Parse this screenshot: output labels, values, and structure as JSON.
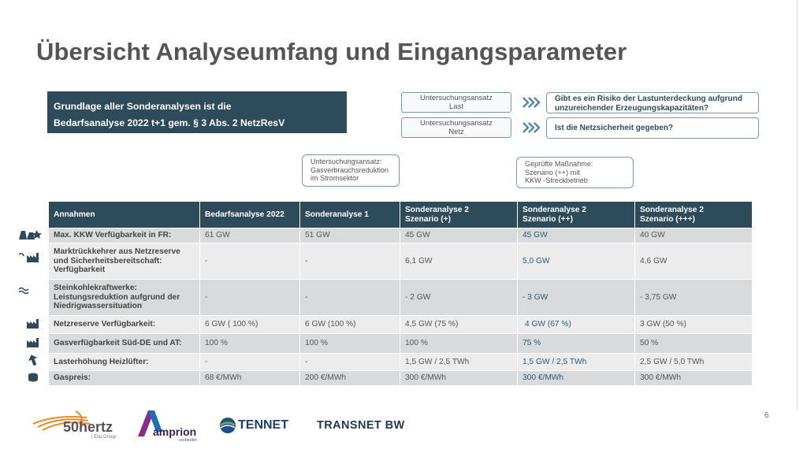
{
  "slide": {
    "title": "Übersicht Analyseumfang und Eingangsparameter",
    "page_number": "6"
  },
  "basis": {
    "line1": "Grundlage aller Sonderanalysen ist die",
    "line2": "Bedarfsanalyse 2022 t+1 gem. § 3 Abs. 2 NetzResV"
  },
  "approaches": [
    {
      "label_line1": "Untersuchungsansatz",
      "label_line2": "Last",
      "question_line1": "Gibt es ein Risiko der Lastunterdeckung aufgrund",
      "question_line2": "unzureichender Erzeugungskapazitäten?"
    },
    {
      "label_line1": "Untersuchungsansatz",
      "label_line2": "Netz",
      "question_line1": "Ist die Netzsicherheit gegeben?",
      "question_line2": ""
    }
  ],
  "notes": {
    "note1": [
      "Untersuchungsansatz:",
      "Gasverbrauchsreduktion",
      "im Stromsektor"
    ],
    "note2": [
      "Geprüfte Maßnahme:",
      "Szenario (++) mit",
      "KKW -Streckbetrieb"
    ]
  },
  "table": {
    "headers": [
      [
        "Annahmen",
        ""
      ],
      [
        "Bedarfsanalyse 2022",
        ""
      ],
      [
        "Sonderanalyse 1",
        ""
      ],
      [
        "Sonderanalyse 2",
        "Szenario (+)"
      ],
      [
        "Sonderanalyse 2",
        "Szenario (++)"
      ],
      [
        "Sonderanalyse 2",
        "Szenario (+++)"
      ]
    ],
    "rows": [
      {
        "label": [
          "Max. KKW Verfügbarkeit in FR:"
        ],
        "icon": "nuclear-plant-icon",
        "values": [
          "61 GW",
          "51 GW",
          "45 GW",
          "45 GW",
          "40 GW"
        ]
      },
      {
        "label": [
          "Marktrückkehrer aus Netzreserve",
          "und Sicherheitsbereitschaft:",
          "Verfügbarkeit"
        ],
        "icon": "factory-return-icon",
        "values": [
          "-",
          "-",
          "6,1 GW",
          "5,0 GW",
          "4,6 GW"
        ]
      },
      {
        "label": [
          "Steinkohlekraftwerke:",
          "Leistungsreduktion aufgrund der",
          "Niedrigwassersituation"
        ],
        "icon": "water-waves-icon",
        "values": [
          "-",
          "-",
          "- 2 GW",
          "- 3 GW",
          "- 3,75 GW"
        ]
      },
      {
        "label": [
          "Netzreserve Verfügbarkeit:"
        ],
        "icon": "factory-icon",
        "values": [
          "6 GW ( 100 %)",
          "6 GW (100 %)",
          "4,5 GW (75 %)",
          "4 GW (67 %)",
          "3 GW (50 %)"
        ]
      },
      {
        "label": [
          "Gasverfügbarkeit Süd-DE und AT:"
        ],
        "icon": "gas-plant-icon",
        "values": [
          "100 %",
          "100 %",
          "100 %",
          "75 %",
          "50 %"
        ]
      },
      {
        "label": [
          "Lasterhöhung Heizlüfter:"
        ],
        "icon": "arrow-up-icon",
        "values": [
          "-",
          "-",
          "1,5 GW / 2,5 TWh",
          "1,5 GW / 2,5 TWh",
          "2,5 GW / 5,0 TWh"
        ]
      },
      {
        "label": [
          "Gaspreis:"
        ],
        "icon": "coins-icon",
        "values": [
          "68 €/MWh",
          "200 €/MWh",
          "300 €/MWh",
          "300 €/MWh",
          "300 €/MWh"
        ]
      }
    ]
  },
  "logos": {
    "hertz": "50hertz",
    "hertz_sub": "| Elia Group",
    "amprion": "amprion",
    "amprion_sub": "verbindet",
    "tennet": "TENNET",
    "transnet": "TRANSNET BW"
  },
  "colors": {
    "header_bg": "#2e4b5c",
    "row_odd": "#d9dadb",
    "row_even": "#ececed",
    "border_blue": "#7a99ad",
    "highlight_text": "#2a5a7a"
  }
}
